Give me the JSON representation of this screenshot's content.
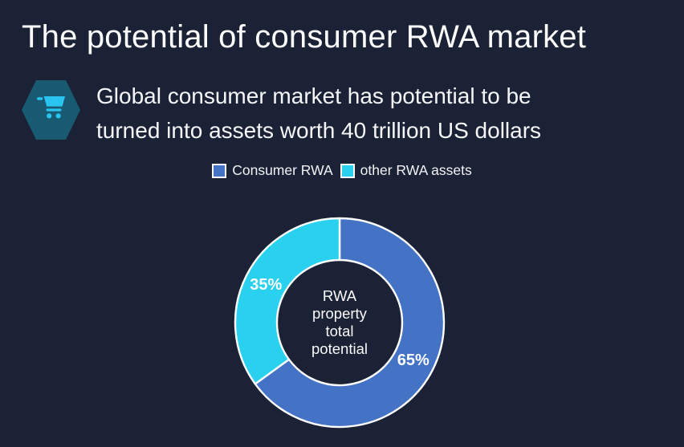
{
  "title": "The potential of consumer RWA market",
  "callout": {
    "icon": "shopping-cart-icon",
    "icon_hex_color": "#175a72",
    "icon_glyph_color": "#29c5f0",
    "lines": [
      "Global consumer market has potential to be",
      "turned into assets worth 40 trillion US dollars"
    ]
  },
  "colors": {
    "background": "#1b2236",
    "text": "#ffffff",
    "slice_border": "#ffffff"
  },
  "chart_data": {
    "type": "pie",
    "subtype": "donut",
    "labels": [
      "Consumer RWA",
      "other RWA assets"
    ],
    "values": [
      65,
      35
    ],
    "data_labels": [
      "65%",
      "35%"
    ],
    "colors": [
      "#4472c4",
      "#29d1ee"
    ],
    "start_angle_deg": 0,
    "direction": "clockwise",
    "legend_position": "top",
    "center_label": "RWA property total potential",
    "center_label_lines": [
      "RWA",
      "property",
      "total",
      "potential"
    ]
  }
}
